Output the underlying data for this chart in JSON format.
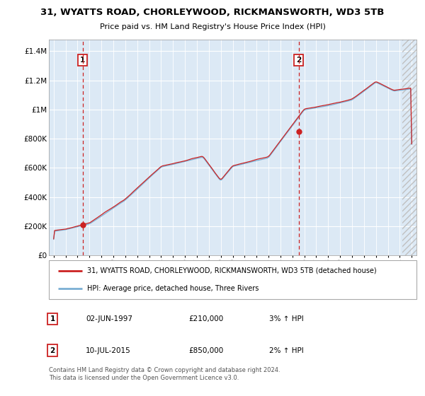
{
  "title1": "31, WYATTS ROAD, CHORLEYWOOD, RICKMANSWORTH, WD3 5TB",
  "title2": "Price paid vs. HM Land Registry's House Price Index (HPI)",
  "ylabel_ticks": [
    "£0",
    "£200K",
    "£400K",
    "£600K",
    "£800K",
    "£1M",
    "£1.2M",
    "£1.4M"
  ],
  "ylabel_values": [
    0,
    200000,
    400000,
    600000,
    800000,
    1000000,
    1200000,
    1400000
  ],
  "ylim": [
    0,
    1480000
  ],
  "legend_line1": "31, WYATTS ROAD, CHORLEYWOOD, RICKMANSWORTH, WD3 5TB (detached house)",
  "legend_line2": "HPI: Average price, detached house, Three Rivers",
  "annotation1_label": "1",
  "annotation1_date": "02-JUN-1997",
  "annotation1_price": "£210,000",
  "annotation1_hpi": "3% ↑ HPI",
  "annotation2_label": "2",
  "annotation2_date": "10-JUL-2015",
  "annotation2_price": "£850,000",
  "annotation2_hpi": "2% ↑ HPI",
  "sale1_year": 1997.42,
  "sale1_price": 210000,
  "sale2_year": 2015.53,
  "sale2_price": 850000,
  "line1_color": "#cc2222",
  "line2_color": "#7bafd4",
  "dot_color": "#cc2222",
  "vline_color": "#cc2222",
  "plot_bg": "#dce9f5",
  "footer": "Contains HM Land Registry data © Crown copyright and database right 2024.\nThis data is licensed under the Open Government Licence v3.0."
}
